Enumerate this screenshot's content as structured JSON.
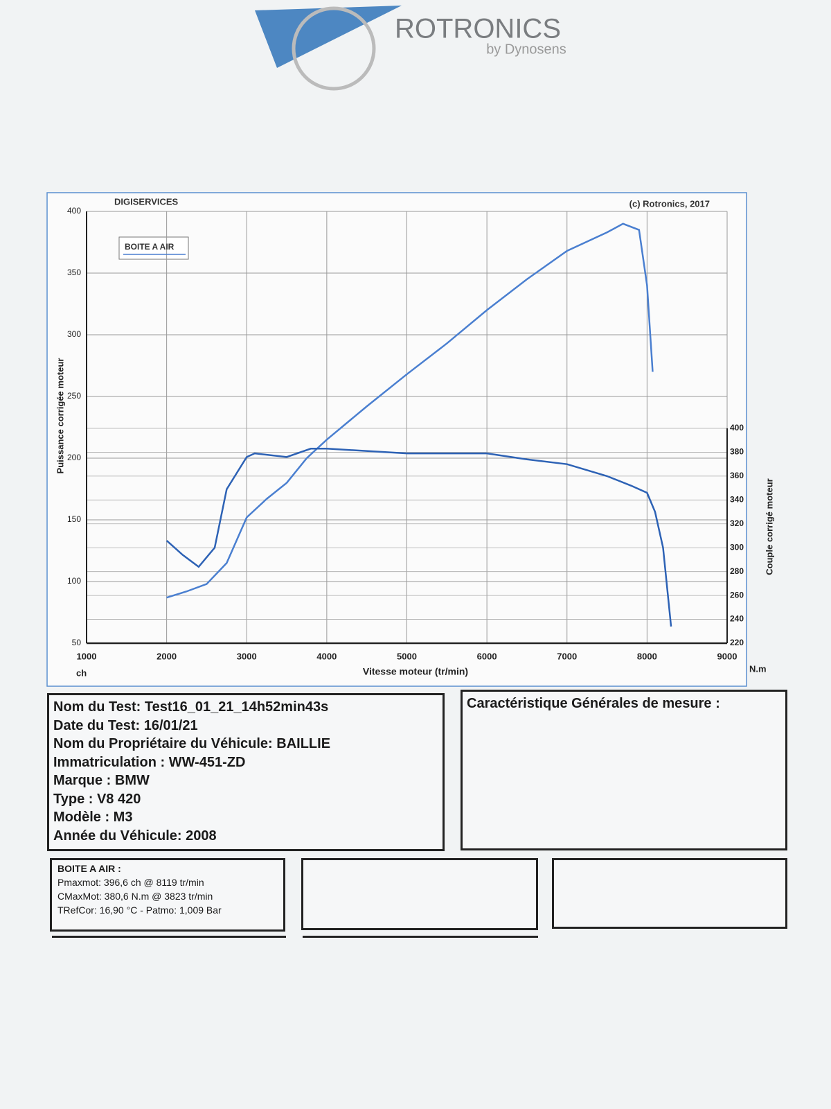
{
  "logo": {
    "name": "ROTRONICS",
    "sub": "by Dynosens"
  },
  "chart_data": {
    "type": "line",
    "company": "DIGISERVICES",
    "copyright": "(c) Rotronics, 2017",
    "x_label": "Vitesse moteur (tr/min)",
    "y_label": "Puissance corrigée moteur",
    "y2_label": "Couple corrigé moteur",
    "y_unit": "ch",
    "y2_unit": "N.m",
    "xlim": [
      1000,
      9000
    ],
    "xticks": [
      1000,
      2000,
      3000,
      4000,
      5000,
      6000,
      7000,
      8000,
      9000
    ],
    "ylim": [
      50,
      400
    ],
    "yticks": [
      50,
      100,
      150,
      200,
      250,
      300,
      350,
      400
    ],
    "y2lim": [
      220,
      400
    ],
    "y2ticks": [
      220,
      240,
      260,
      280,
      300,
      320,
      340,
      360,
      380,
      400
    ],
    "grid": true,
    "series": [
      {
        "name": "BOITE A AIR",
        "color": "#4a7fd0",
        "x": [
          2000,
          2250,
          2500,
          2750,
          3000,
          3250,
          3500,
          3750,
          4000,
          4500,
          5000,
          5500,
          6000,
          6500,
          7000,
          7500,
          7700,
          7900,
          8000,
          8070
        ],
        "values": [
          87,
          92,
          98,
          115,
          152,
          167,
          180,
          200,
          215,
          242,
          268,
          293,
          320,
          345,
          368,
          383,
          390,
          385,
          340,
          270
        ]
      },
      {
        "color": "#2d62b5",
        "axis": "y2",
        "x": [
          2000,
          2200,
          2400,
          2600,
          2750,
          3000,
          3100,
          3500,
          3800,
          4000,
          5000,
          5500,
          6000,
          6500,
          7000,
          7500,
          7800,
          8000,
          8100,
          8200,
          8300
        ],
        "values": [
          306,
          294,
          284,
          300,
          349,
          376,
          379,
          376,
          383,
          383,
          379,
          379,
          379,
          374,
          370,
          360,
          352,
          346,
          330,
          300,
          234
        ]
      }
    ]
  },
  "test_info": {
    "lines": [
      "Nom du Test: Test16_01_21_14h52min43s",
      "Date du Test: 16/01/21",
      "Nom du Propriétaire du Véhicule: BAILLIE",
      "Immatriculation  : WW-451-ZD",
      "Marque  : BMW",
      "Type  : V8 420",
      "Modèle  : M3",
      "Année du Véhicule: 2008"
    ]
  },
  "general": {
    "title": "Caractéristique Générales de mesure :"
  },
  "results": {
    "title": "BOITE A AIR :",
    "lines": [
      "Pmaxmot: 396,6 ch @ 8119 tr/min",
      "CMaxMot: 380,6 N.m @ 3823 tr/min",
      "TRefCor: 16,90 °C - Patmo: 1,009 Bar"
    ]
  }
}
